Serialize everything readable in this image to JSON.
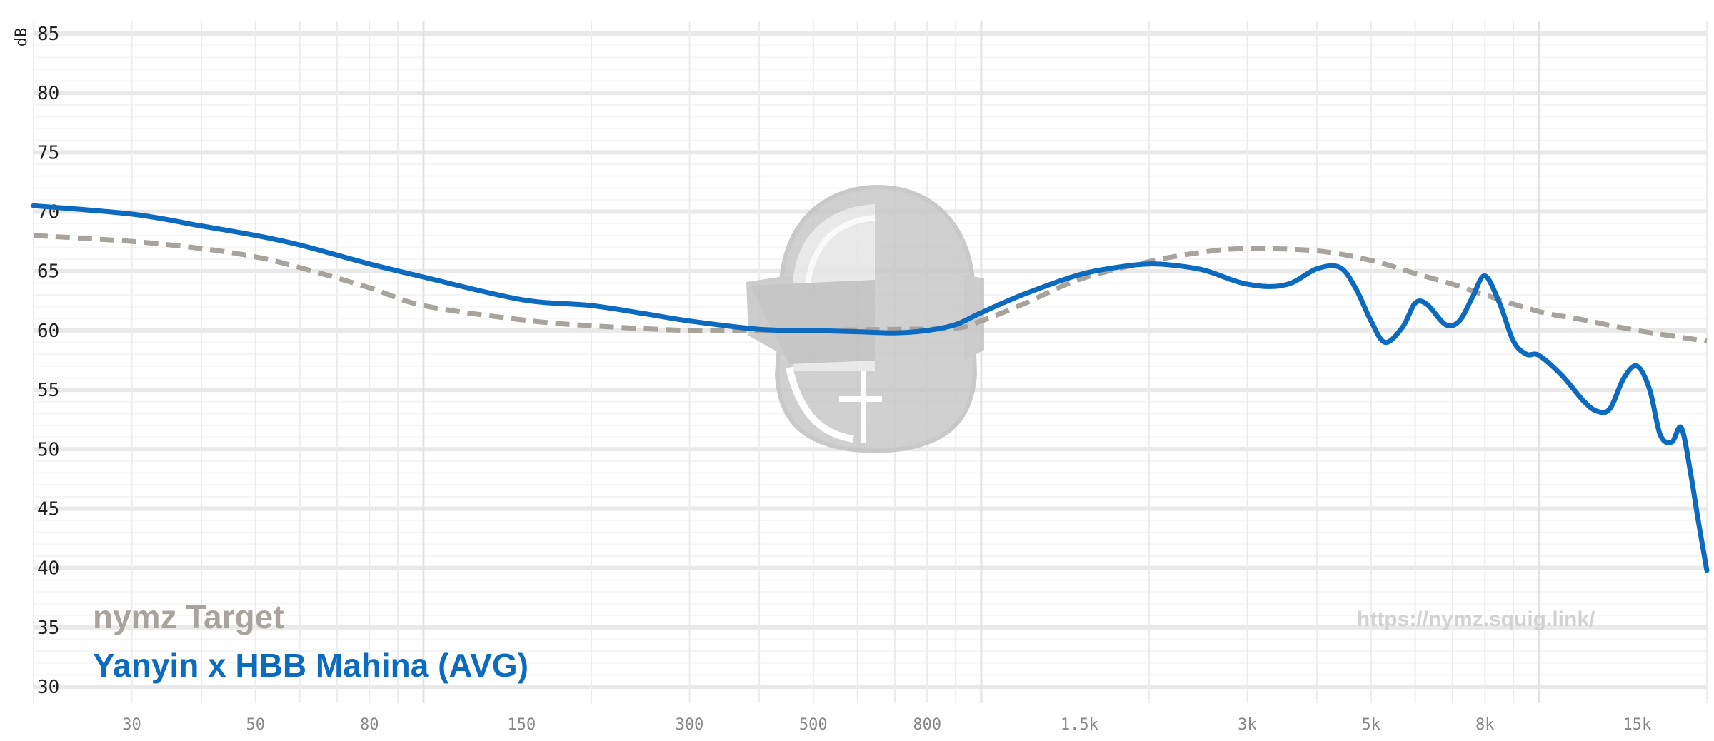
{
  "chart_data": {
    "type": "line",
    "ylabel": "dB",
    "ylim": [
      30,
      85
    ],
    "xlim": [
      20,
      20000
    ],
    "x_scale": "log",
    "grid": true,
    "y_ticks": [
      {
        "value": 85,
        "label": "85"
      },
      {
        "value": 80,
        "label": "80"
      },
      {
        "value": 75,
        "label": "75"
      },
      {
        "value": 70,
        "label": "70"
      },
      {
        "value": 65,
        "label": "65"
      },
      {
        "value": 60,
        "label": "60"
      },
      {
        "value": 55,
        "label": "55"
      },
      {
        "value": 50,
        "label": "50"
      },
      {
        "value": 45,
        "label": "45"
      },
      {
        "value": 40,
        "label": "40"
      },
      {
        "value": 35,
        "label": "35"
      },
      {
        "value": 30,
        "label": "30"
      }
    ],
    "x_ticks": [
      {
        "value": 30,
        "label": "30"
      },
      {
        "value": 50,
        "label": "50"
      },
      {
        "value": 80,
        "label": "80"
      },
      {
        "value": 150,
        "label": "150"
      },
      {
        "value": 300,
        "label": "300"
      },
      {
        "value": 500,
        "label": "500"
      },
      {
        "value": 800,
        "label": "800"
      },
      {
        "value": 1500,
        "label": "1.5k"
      },
      {
        "value": 3000,
        "label": "3k"
      },
      {
        "value": 5000,
        "label": "5k"
      },
      {
        "value": 8000,
        "label": "8k"
      },
      {
        "value": 15000,
        "label": "15k"
      }
    ],
    "legend_placement": "bottom-left",
    "watermark_text": "https://nymz.squig.link/",
    "colors": {
      "target": "#a8a39c",
      "measurement": "#0c6bbf"
    },
    "series": [
      {
        "name": "nymz Target",
        "style": "dashed",
        "x": [
          20,
          30,
          40,
          50,
          60,
          80,
          100,
          150,
          200,
          300,
          400,
          500,
          700,
          900,
          1000,
          1200,
          1500,
          2000,
          2500,
          3000,
          4000,
          5000,
          6000,
          7000,
          8000,
          10000,
          12000,
          15000,
          20000
        ],
        "y": [
          68.0,
          67.5,
          66.9,
          66.2,
          65.3,
          63.6,
          62.1,
          60.9,
          60.4,
          60.0,
          60.0,
          60.0,
          60.1,
          60.2,
          60.8,
          62.3,
          64.3,
          65.8,
          66.6,
          66.9,
          66.7,
          65.9,
          64.8,
          63.9,
          63.0,
          61.6,
          60.9,
          60.0,
          59.1
        ]
      },
      {
        "name": "Yanyin x HBB Mahina (AVG)",
        "style": "solid",
        "x": [
          20,
          30,
          40,
          50,
          60,
          80,
          100,
          150,
          200,
          250,
          300,
          400,
          500,
          600,
          700,
          800,
          900,
          1000,
          1200,
          1500,
          1800,
          2000,
          2200,
          2500,
          2800,
          3000,
          3300,
          3600,
          4000,
          4400,
          4700,
          5000,
          5300,
          5700,
          6000,
          6300,
          6800,
          7200,
          7600,
          8000,
          8500,
          9000,
          9500,
          10000,
          11000,
          12000,
          12700,
          13400,
          14200,
          15000,
          15800,
          16500,
          17300,
          18000,
          18700,
          19300,
          20000
        ],
        "y": [
          70.5,
          69.8,
          68.8,
          68.0,
          67.2,
          65.6,
          64.5,
          62.6,
          62.1,
          61.4,
          60.8,
          60.1,
          60.0,
          59.9,
          59.8,
          60.0,
          60.5,
          61.5,
          63.1,
          64.7,
          65.4,
          65.6,
          65.5,
          65.1,
          64.3,
          63.9,
          63.7,
          64.0,
          65.2,
          65.3,
          63.5,
          60.8,
          59.0,
          60.3,
          62.3,
          62.2,
          60.5,
          60.8,
          62.8,
          64.6,
          62.3,
          59.1,
          58.0,
          57.9,
          56.2,
          54.1,
          53.2,
          53.4,
          56.0,
          57.0,
          55.0,
          51.2,
          50.6,
          51.8,
          48.0,
          44.0,
          39.8
        ]
      }
    ]
  }
}
